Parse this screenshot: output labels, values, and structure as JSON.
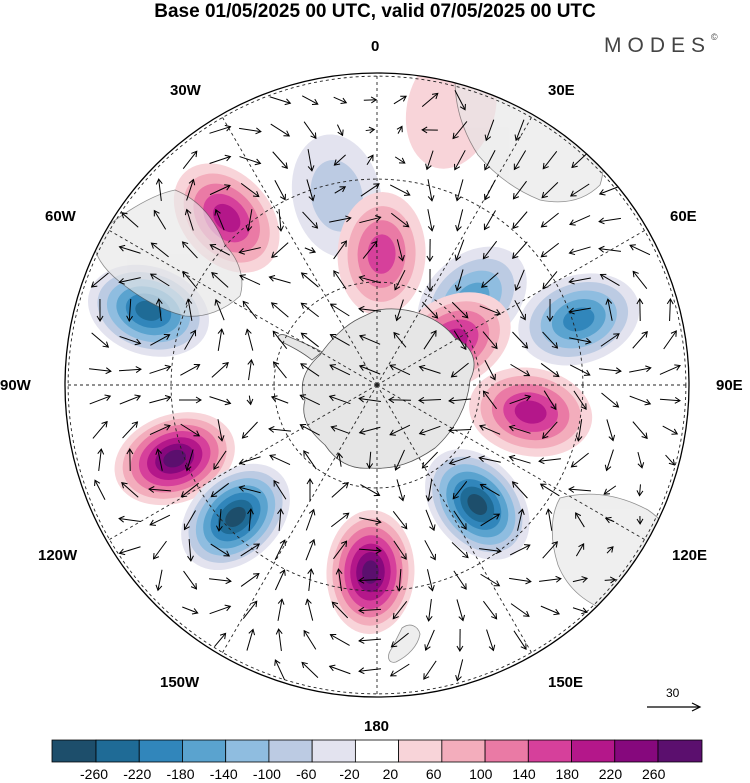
{
  "title": "Base 01/05/2025 00 UTC, valid 07/05/2025 00 UTC",
  "brand": {
    "name": "MODES",
    "mark": "©"
  },
  "longitude_labels": [
    {
      "id": "lon-0",
      "text": "0"
    },
    {
      "id": "lon-30e",
      "text": "30E"
    },
    {
      "id": "lon-60e",
      "text": "60E"
    },
    {
      "id": "lon-90e",
      "text": "90E"
    },
    {
      "id": "lon-120e",
      "text": "120E"
    },
    {
      "id": "lon-150e",
      "text": "150E"
    },
    {
      "id": "lon-180",
      "text": "180"
    },
    {
      "id": "lon-150w",
      "text": "150W"
    },
    {
      "id": "lon-120w",
      "text": "120W"
    },
    {
      "id": "lon-90w",
      "text": "90W"
    },
    {
      "id": "lon-60w",
      "text": "60W"
    },
    {
      "id": "lon-30w",
      "text": "30W"
    }
  ],
  "reference_vector": {
    "value": "30"
  },
  "colorbar": {
    "ticks": [
      "-260",
      "-220",
      "-180",
      "-140",
      "-100",
      "-60",
      "-20",
      "20",
      "60",
      "100",
      "140",
      "180",
      "220",
      "260"
    ],
    "colors": [
      "#1d4e6b",
      "#1f6b96",
      "#3186bb",
      "#5aa3cf",
      "#8fbde0",
      "#bccbe3",
      "#e3e3ef",
      "#ffffff",
      "#f8d4d9",
      "#f3adbc",
      "#ea7aa5",
      "#d6409b",
      "#b4178a",
      "#86087d",
      "#5b0f6e"
    ]
  },
  "map_features": {
    "projection": "south-polar-stereographic",
    "anomalies": [
      {
        "lon": 15,
        "r": 0.92,
        "value": 50
      },
      {
        "lon": -12,
        "r": 0.62,
        "value": -80
      },
      {
        "lon": -42,
        "r": 0.72,
        "value": 210
      },
      {
        "lon": -72,
        "r": 0.77,
        "value": -250
      },
      {
        "lon": -110,
        "r": 0.69,
        "value": 270
      },
      {
        "lon": -133,
        "r": 0.62,
        "value": -270
      },
      {
        "lon": -178,
        "r": 0.6,
        "value": 270
      },
      {
        "lon": 140,
        "r": 0.5,
        "value": -270
      },
      {
        "lon": 100,
        "r": 0.5,
        "value": 200
      },
      {
        "lon": 72,
        "r": 0.68,
        "value": -210
      },
      {
        "lon": 48,
        "r": 0.41,
        "value": -160
      },
      {
        "lon": 2,
        "r": 0.42,
        "value": 140
      },
      {
        "lon": 60,
        "r": 0.28,
        "value": 180
      }
    ]
  }
}
